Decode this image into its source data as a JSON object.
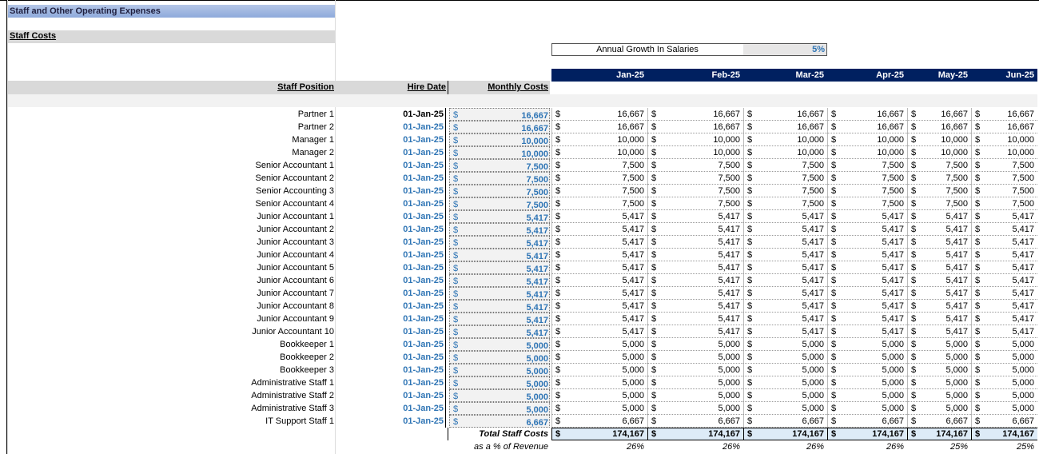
{
  "header": {
    "title": "Staff and Other Operating Expenses",
    "section": "Staff Costs"
  },
  "growth": {
    "label": "Annual Growth In Salaries",
    "value": "5%"
  },
  "table": {
    "columns": [
      "Staff Position",
      "Hire Date",
      "Monthly Costs"
    ],
    "months": [
      "Jan-25",
      "Feb-25",
      "Mar-25",
      "Apr-25",
      "May-25",
      "Jun-25"
    ],
    "currency": "$",
    "rows": [
      {
        "position": "Partner 1",
        "hire_date": "01-Jan-25",
        "monthly_cost": "16,667",
        "values": [
          "16,667",
          "16,667",
          "16,667",
          "16,667",
          "16,667",
          "16,667"
        ]
      },
      {
        "position": "Partner 2",
        "hire_date": "01-Jan-25",
        "monthly_cost": "16,667",
        "values": [
          "16,667",
          "16,667",
          "16,667",
          "16,667",
          "16,667",
          "16,667"
        ]
      },
      {
        "position": "Manager 1",
        "hire_date": "01-Jan-25",
        "monthly_cost": "10,000",
        "values": [
          "10,000",
          "10,000",
          "10,000",
          "10,000",
          "10,000",
          "10,000"
        ]
      },
      {
        "position": "Manager 2",
        "hire_date": "01-Jan-25",
        "monthly_cost": "10,000",
        "values": [
          "10,000",
          "10,000",
          "10,000",
          "10,000",
          "10,000",
          "10,000"
        ]
      },
      {
        "position": "Senior Accountant 1",
        "hire_date": "01-Jan-25",
        "monthly_cost": "7,500",
        "values": [
          "7,500",
          "7,500",
          "7,500",
          "7,500",
          "7,500",
          "7,500"
        ]
      },
      {
        "position": "Senior Accountant 2",
        "hire_date": "01-Jan-25",
        "monthly_cost": "7,500",
        "values": [
          "7,500",
          "7,500",
          "7,500",
          "7,500",
          "7,500",
          "7,500"
        ]
      },
      {
        "position": "Senior Accounting 3",
        "hire_date": "01-Jan-25",
        "monthly_cost": "7,500",
        "values": [
          "7,500",
          "7,500",
          "7,500",
          "7,500",
          "7,500",
          "7,500"
        ]
      },
      {
        "position": "Senior Accountant 4",
        "hire_date": "01-Jan-25",
        "monthly_cost": "7,500",
        "values": [
          "7,500",
          "7,500",
          "7,500",
          "7,500",
          "7,500",
          "7,500"
        ]
      },
      {
        "position": "Junior Accountant 1",
        "hire_date": "01-Jan-25",
        "monthly_cost": "5,417",
        "values": [
          "5,417",
          "5,417",
          "5,417",
          "5,417",
          "5,417",
          "5,417"
        ]
      },
      {
        "position": "Junior Accountant 2",
        "hire_date": "01-Jan-25",
        "monthly_cost": "5,417",
        "values": [
          "5,417",
          "5,417",
          "5,417",
          "5,417",
          "5,417",
          "5,417"
        ]
      },
      {
        "position": "Junior Accountant 3",
        "hire_date": "01-Jan-25",
        "monthly_cost": "5,417",
        "values": [
          "5,417",
          "5,417",
          "5,417",
          "5,417",
          "5,417",
          "5,417"
        ]
      },
      {
        "position": "Junior Accountant 4",
        "hire_date": "01-Jan-25",
        "monthly_cost": "5,417",
        "values": [
          "5,417",
          "5,417",
          "5,417",
          "5,417",
          "5,417",
          "5,417"
        ]
      },
      {
        "position": "Junior Accountant 5",
        "hire_date": "01-Jan-25",
        "monthly_cost": "5,417",
        "values": [
          "5,417",
          "5,417",
          "5,417",
          "5,417",
          "5,417",
          "5,417"
        ]
      },
      {
        "position": "Junior Accountant 6",
        "hire_date": "01-Jan-25",
        "monthly_cost": "5,417",
        "values": [
          "5,417",
          "5,417",
          "5,417",
          "5,417",
          "5,417",
          "5,417"
        ]
      },
      {
        "position": "Junior Accountant 7",
        "hire_date": "01-Jan-25",
        "monthly_cost": "5,417",
        "values": [
          "5,417",
          "5,417",
          "5,417",
          "5,417",
          "5,417",
          "5,417"
        ]
      },
      {
        "position": "Junior Accountant 8",
        "hire_date": "01-Jan-25",
        "monthly_cost": "5,417",
        "values": [
          "5,417",
          "5,417",
          "5,417",
          "5,417",
          "5,417",
          "5,417"
        ]
      },
      {
        "position": "Junior Accountant 9",
        "hire_date": "01-Jan-25",
        "monthly_cost": "5,417",
        "values": [
          "5,417",
          "5,417",
          "5,417",
          "5,417",
          "5,417",
          "5,417"
        ]
      },
      {
        "position": "Junior Accountant 10",
        "hire_date": "01-Jan-25",
        "monthly_cost": "5,417",
        "values": [
          "5,417",
          "5,417",
          "5,417",
          "5,417",
          "5,417",
          "5,417"
        ]
      },
      {
        "position": "Bookkeeper 1",
        "hire_date": "01-Jan-25",
        "monthly_cost": "5,000",
        "values": [
          "5,000",
          "5,000",
          "5,000",
          "5,000",
          "5,000",
          "5,000"
        ]
      },
      {
        "position": "Bookkeeper 2",
        "hire_date": "01-Jan-25",
        "monthly_cost": "5,000",
        "values": [
          "5,000",
          "5,000",
          "5,000",
          "5,000",
          "5,000",
          "5,000"
        ]
      },
      {
        "position": "Bookkeeper 3",
        "hire_date": "01-Jan-25",
        "monthly_cost": "5,000",
        "values": [
          "5,000",
          "5,000",
          "5,000",
          "5,000",
          "5,000",
          "5,000"
        ]
      },
      {
        "position": "Administrative Staff 1",
        "hire_date": "01-Jan-25",
        "monthly_cost": "5,000",
        "values": [
          "5,000",
          "5,000",
          "5,000",
          "5,000",
          "5,000",
          "5,000"
        ]
      },
      {
        "position": "Administrative Staff 2",
        "hire_date": "01-Jan-25",
        "monthly_cost": "5,000",
        "values": [
          "5,000",
          "5,000",
          "5,000",
          "5,000",
          "5,000",
          "5,000"
        ]
      },
      {
        "position": "Administrative Staff 3",
        "hire_date": "01-Jan-25",
        "monthly_cost": "5,000",
        "values": [
          "5,000",
          "5,000",
          "5,000",
          "5,000",
          "5,000",
          "5,000"
        ]
      },
      {
        "position": "IT Support Staff 1",
        "hire_date": "01-Jan-25",
        "monthly_cost": "6,667",
        "values": [
          "6,667",
          "6,667",
          "6,667",
          "6,667",
          "6,667",
          "6,667"
        ]
      }
    ],
    "total": {
      "label": "Total Staff Costs",
      "values": [
        "174,167",
        "174,167",
        "174,167",
        "174,167",
        "174,167",
        "174,167"
      ]
    },
    "percent": {
      "label": "as a % of Revenue",
      "values": [
        "26%",
        "26%",
        "26%",
        "26%",
        "25%",
        "25%"
      ]
    }
  }
}
